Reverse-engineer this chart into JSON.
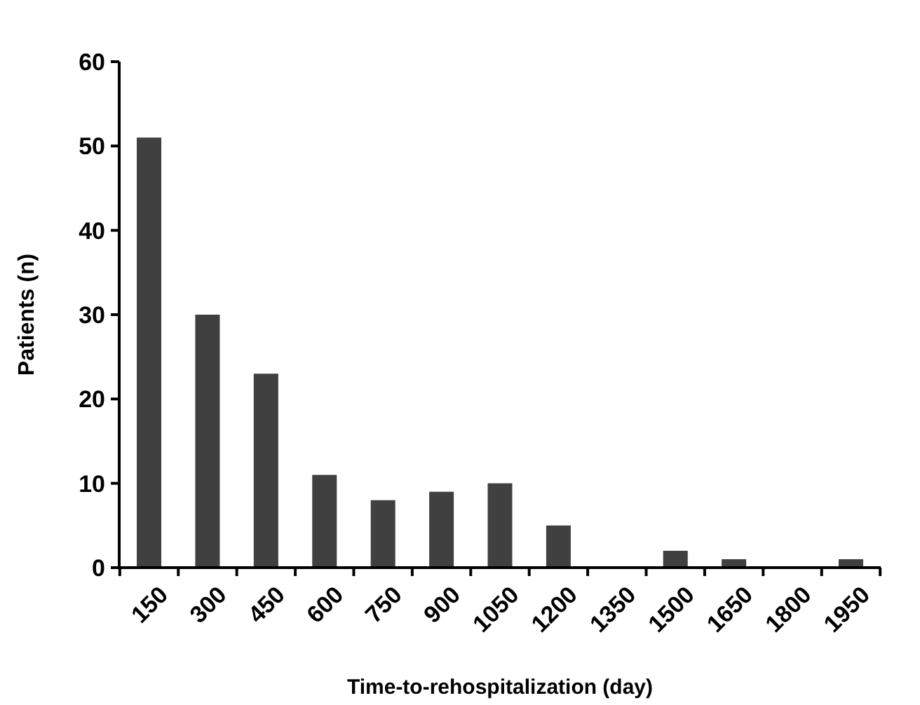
{
  "chart_data": {
    "type": "bar",
    "xlabel": "Time-to-rehospitalization (day)",
    "ylabel": "Patients (n)",
    "categories": [
      "150",
      "300",
      "450",
      "600",
      "750",
      "900",
      "1050",
      "1200",
      "1350",
      "1500",
      "1650",
      "1800",
      "1950"
    ],
    "values": [
      51,
      30,
      23,
      11,
      8,
      9,
      10,
      5,
      0,
      2,
      1,
      0,
      1
    ],
    "color": "#404040",
    "ylim": [
      0,
      60
    ],
    "yticks": [
      0,
      10,
      20,
      30,
      40,
      50,
      60
    ],
    "grid": false
  }
}
